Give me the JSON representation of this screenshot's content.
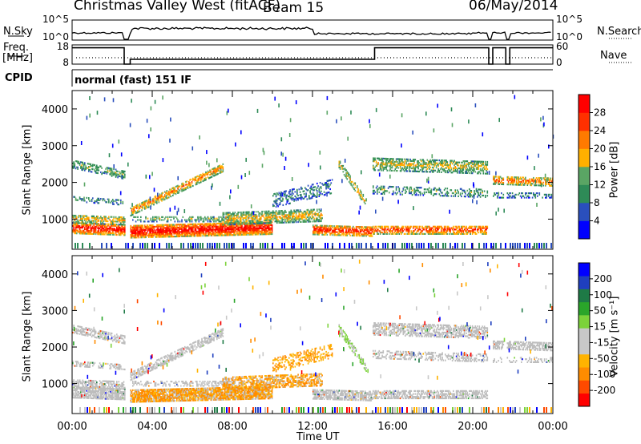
{
  "header": {
    "station": "Christmas Valley West (fitACF)",
    "beam": "Beam 15",
    "date": "06/May/2014"
  },
  "left_labels": {
    "nsky": "N.Sky",
    "freq": "Freq.",
    "freq_unit": "[MHz]",
    "cpid": "CPID"
  },
  "right_labels": {
    "nsearch": "N.Search",
    "nave": "Nave"
  },
  "mode_text": "normal (fast) 151 IF",
  "colors": {
    "power_scale": [
      "#0000ff",
      "#2a4fbd",
      "#2e8b57",
      "#5aa564",
      "#ffb000",
      "#ff7a00",
      "#ff3000",
      "#ff0000"
    ],
    "velocity_scale": [
      "#ff0000",
      "#ff4a00",
      "#ff8c00",
      "#ffb300",
      "#c8c8c8",
      "#c8c8c8",
      "#7cd23a",
      "#2aa52a",
      "#1e7a46",
      "#1f3fbf",
      "#0000ff"
    ],
    "ground_scatter": "#bdbdbd"
  },
  "chart_data": [
    {
      "type": "line",
      "name": "noise-panel",
      "left_axis_ticks": [
        "10^5",
        "10^0"
      ],
      "right_axis_ticks": [
        "10^5",
        "10^0"
      ],
      "x_range_hours": [
        0,
        24
      ],
      "gaps_hours": [
        [
          2.6,
          2.9
        ],
        [
          20.8,
          21.0
        ],
        [
          21.65,
          21.85
        ]
      ]
    },
    {
      "type": "line",
      "name": "frequency-panel",
      "left_axis_ticks": [
        "18",
        "8"
      ],
      "right_axis_ticks": [
        "60",
        "0"
      ],
      "freq_ylim": [
        8,
        18
      ],
      "nave_ylim": [
        0,
        60
      ],
      "freq_mhz": 10.5,
      "nave_typical": 20,
      "x_range_hours": [
        0,
        24
      ]
    },
    {
      "type": "heatmap",
      "name": "power",
      "ylabel": "Slant Range [km]",
      "y_ticks": [
        "1000",
        "2000",
        "3000",
        "4000"
      ],
      "ylim": [
        180,
        4500
      ],
      "x_range_hours": [
        0,
        24
      ],
      "colorbar_label": "Power [dB]",
      "colorbar_ticks": [
        "4",
        "8",
        "12",
        "16",
        "20",
        "24",
        "28"
      ],
      "colorbar_range": [
        0,
        32
      ]
    },
    {
      "type": "heatmap",
      "name": "velocity",
      "ylabel": "Slant Range [km]",
      "y_ticks": [
        "1000",
        "2000",
        "3000",
        "4000"
      ],
      "ylim": [
        180,
        4500
      ],
      "x_range_hours": [
        0,
        24
      ],
      "x_tick_labels": [
        "00:00",
        "04:00",
        "08:00",
        "12:00",
        "16:00",
        "20:00",
        "00:00"
      ],
      "xlabel": "Time UT",
      "colorbar_label": "Velocity [m s⁻¹]",
      "colorbar_ticks": [
        "200",
        "100",
        "50",
        "15",
        "-15",
        "-50",
        "-100",
        "-200"
      ]
    }
  ]
}
